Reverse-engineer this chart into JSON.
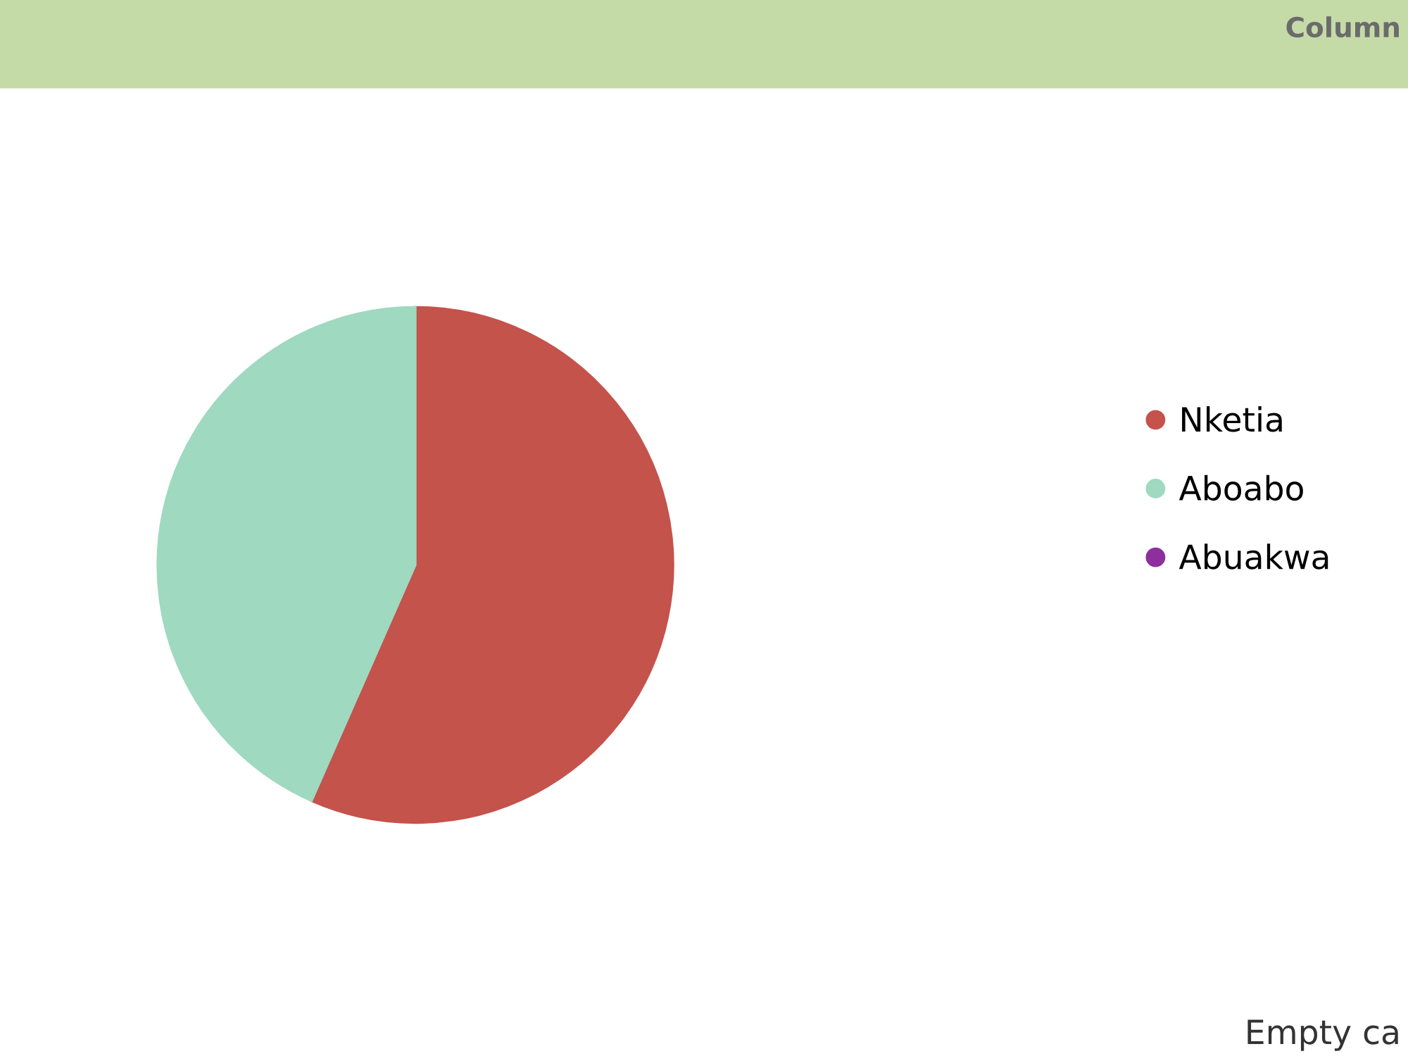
{
  "chart_data": {
    "type": "pie",
    "categories": [
      "Nketia",
      "Aboabo",
      "Abuakwa"
    ],
    "values": [
      56.6,
      43.4,
      0
    ],
    "colors": [
      "#c4534c",
      "#9ed9c0",
      "#8e2f9e"
    ],
    "legend": "right",
    "annotations": [
      "Column",
      "Empty ca"
    ]
  }
}
